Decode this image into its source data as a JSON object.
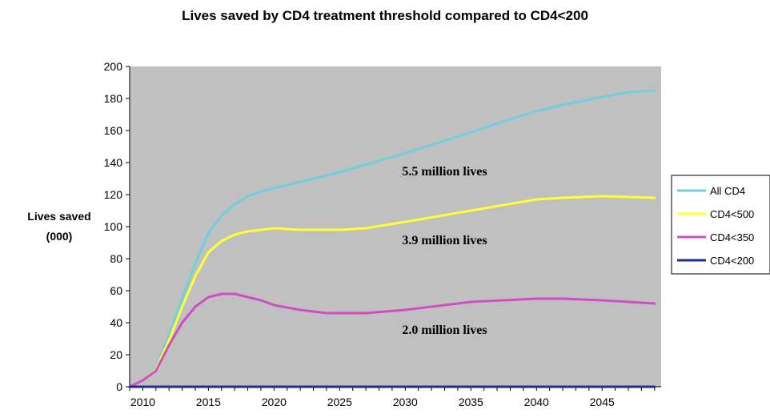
{
  "chart_data": {
    "type": "line",
    "title": "Lives saved by CD4 treatment threshold compared to CD4<200",
    "ylabel_lines": [
      "Lives saved",
      "(000)"
    ],
    "xlabel": "",
    "xlim": [
      2009,
      2049.5
    ],
    "ylim": [
      0,
      200
    ],
    "x_ticks": [
      2010,
      2015,
      2020,
      2025,
      2030,
      2035,
      2040,
      2045
    ],
    "y_ticks": [
      0,
      20,
      40,
      60,
      80,
      100,
      120,
      140,
      160,
      180,
      200
    ],
    "grid": false,
    "plot_background": "#c0c0c0",
    "legend_position": "right",
    "annotations": [
      {
        "text": "5.5 million lives",
        "x": 2033,
        "y": 132
      },
      {
        "text": "3.9 million lives",
        "x": 2033,
        "y": 89
      },
      {
        "text": "2.0 million lives",
        "x": 2033,
        "y": 33
      }
    ],
    "series": [
      {
        "name": "All CD4",
        "color": "#6fcfdc",
        "x": [
          2009,
          2010,
          2011,
          2012,
          2013,
          2014,
          2015,
          2016,
          2017,
          2018,
          2019,
          2020,
          2022,
          2025,
          2028,
          2030,
          2032,
          2035,
          2038,
          2040,
          2042,
          2045,
          2047,
          2049
        ],
        "y": [
          0,
          4,
          12,
          32,
          55,
          77,
          96,
          107,
          114,
          119,
          122,
          124,
          128,
          134,
          141,
          146,
          151,
          159,
          167,
          172,
          176,
          181,
          184,
          185
        ]
      },
      {
        "name": "CD4<500",
        "color": "#ffff33",
        "x": [
          2009,
          2010,
          2011,
          2012,
          2013,
          2014,
          2015,
          2016,
          2017,
          2018,
          2019,
          2020,
          2022,
          2025,
          2027,
          2030,
          2035,
          2040,
          2042,
          2045,
          2049
        ],
        "y": [
          0,
          4,
          11,
          29,
          50,
          69,
          84,
          91,
          95,
          97,
          98,
          99,
          98,
          98,
          99,
          103,
          110,
          117,
          118,
          119,
          118
        ]
      },
      {
        "name": "CD4<350",
        "color": "#d04ec4",
        "x": [
          2009,
          2010,
          2011,
          2012,
          2013,
          2014,
          2015,
          2016,
          2017,
          2018,
          2019,
          2020,
          2022,
          2024,
          2025,
          2027,
          2030,
          2033,
          2035,
          2040,
          2042,
          2045,
          2049
        ],
        "y": [
          0,
          4,
          10,
          26,
          40,
          50,
          56,
          58,
          58,
          56,
          54,
          51,
          48,
          46,
          46,
          46,
          48,
          51,
          53,
          55,
          55,
          54,
          52
        ]
      },
      {
        "name": "CD4<200",
        "color": "#1f2f8a",
        "x": [
          2009,
          2049
        ],
        "y": [
          0,
          0
        ]
      }
    ]
  }
}
